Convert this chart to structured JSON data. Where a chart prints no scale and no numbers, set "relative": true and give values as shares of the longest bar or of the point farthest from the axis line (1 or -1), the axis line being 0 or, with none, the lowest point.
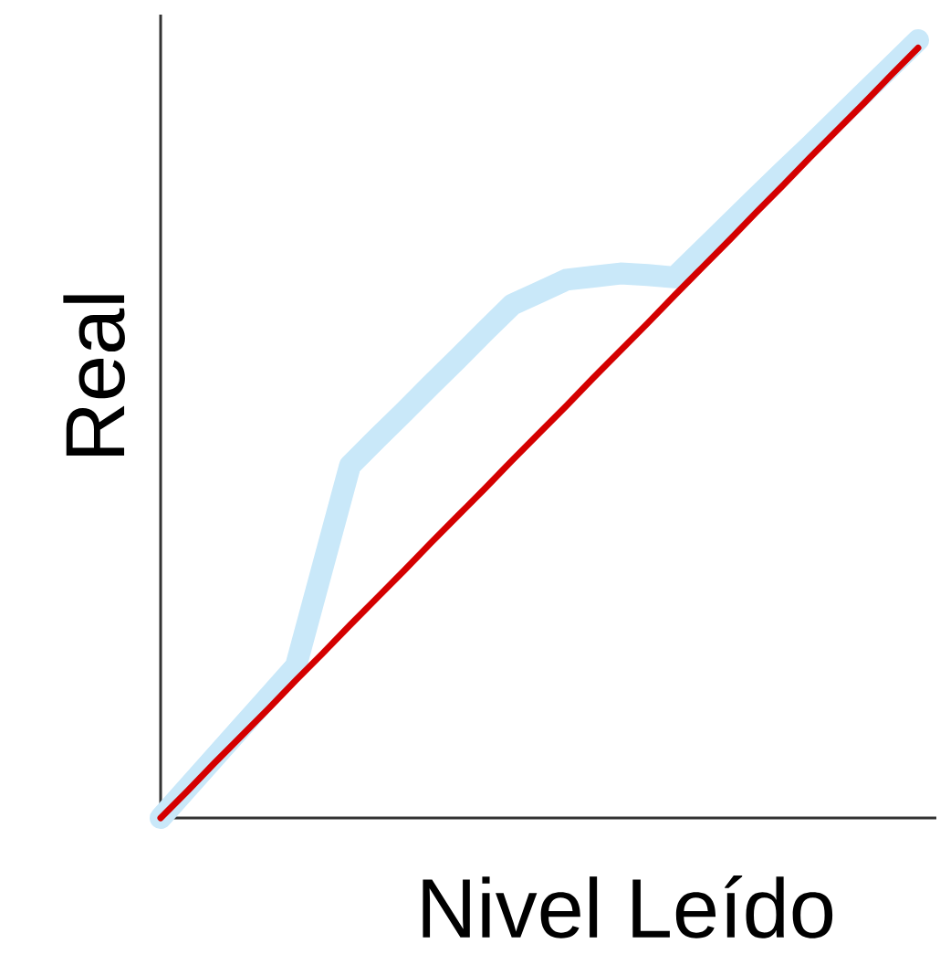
{
  "chart_data": {
    "type": "line",
    "relative": true,
    "xlabel": "Nivel Leído",
    "ylabel": "Real",
    "categories": [
      null,
      null,
      null,
      null,
      null,
      null,
      null,
      null,
      null,
      null,
      null,
      null,
      null,
      null,
      null,
      null,
      null,
      null,
      null,
      null,
      null,
      null,
      null,
      null,
      null,
      null,
      null,
      null,
      null
    ],
    "series": [
      {
        "color": "#c9e8f9",
        "values": [
          0,
          0.039,
          0.078,
          0.117,
          0.156,
          0.195,
          0.324,
          0.453,
          0.488,
          0.522,
          0.557,
          0.591,
          0.626,
          0.66,
          0.676,
          0.692,
          0.696,
          0.7,
          0.698,
          0.695,
          0.729,
          0.763,
          0.797,
          0.831,
          0.864,
          0.898,
          0.932,
          0.966,
          1
        ]
      },
      {
        "color": "#d40000",
        "values": [
          0,
          0.035,
          0.071,
          0.106,
          0.141,
          0.177,
          0.212,
          0.248,
          0.283,
          0.318,
          0.354,
          0.389,
          0.424,
          0.46,
          0.495,
          0.53,
          0.566,
          0.601,
          0.636,
          0.672,
          0.707,
          0.742,
          0.778,
          0.813,
          0.849,
          0.884,
          0.919,
          0.955,
          0.99
        ]
      }
    ]
  }
}
